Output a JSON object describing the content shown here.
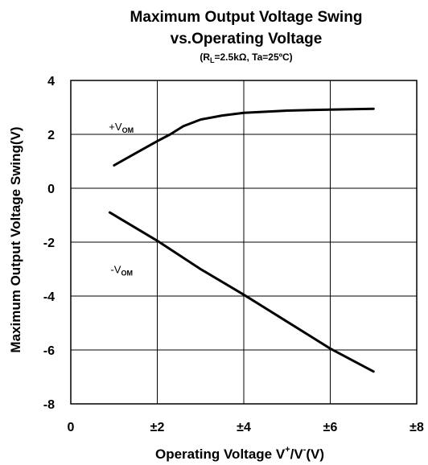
{
  "chart_data": {
    "type": "line",
    "title": "Maximum Output Voltage Swing",
    "title_line2": "vs.Operating Voltage",
    "conditions": {
      "r_main": "(R",
      "r_sub": "L",
      "rest": "=2.5kΩ, Ta=25ºC)"
    },
    "xlabel": {
      "main": "Operating Voltage V",
      "sup1": "+",
      "mid": "/V",
      "sup2": "-",
      "end": "(V)"
    },
    "ylabel": "Maximum Output Voltage Swing(V)",
    "xlim": [
      0,
      8
    ],
    "ylim": [
      -8,
      4
    ],
    "x_ticks": [
      {
        "value": 0,
        "label": "0"
      },
      {
        "value": 2,
        "label": "±2"
      },
      {
        "value": 4,
        "label": "±4"
      },
      {
        "value": 6,
        "label": "±6"
      },
      {
        "value": 8,
        "label": "±8"
      }
    ],
    "y_ticks": [
      {
        "value": 4,
        "label": "4"
      },
      {
        "value": 2,
        "label": "2"
      },
      {
        "value": 0,
        "label": "0"
      },
      {
        "value": -2,
        "label": "-2"
      },
      {
        "value": -4,
        "label": "-4"
      },
      {
        "value": -6,
        "label": "-6"
      },
      {
        "value": -8,
        "label": "-8"
      }
    ],
    "grid": true,
    "series": [
      {
        "name_main": "+V",
        "name_sub": "OM",
        "label_at": [
          0.88,
          2.15
        ],
        "x": [
          1.0,
          1.5,
          2.0,
          2.3,
          2.6,
          3.0,
          3.5,
          4.0,
          5.0,
          6.0,
          7.0
        ],
        "y": [
          0.85,
          1.3,
          1.75,
          2.0,
          2.3,
          2.55,
          2.7,
          2.8,
          2.88,
          2.92,
          2.95
        ]
      },
      {
        "name_main": "-V",
        "name_sub": "OM",
        "label_at": [
          0.92,
          -3.15
        ],
        "x": [
          0.9,
          2.0,
          3.0,
          4.0,
          5.0,
          6.0,
          7.0
        ],
        "y": [
          -0.9,
          -1.95,
          -3.0,
          -3.95,
          -4.95,
          -5.95,
          -6.8
        ]
      }
    ]
  }
}
